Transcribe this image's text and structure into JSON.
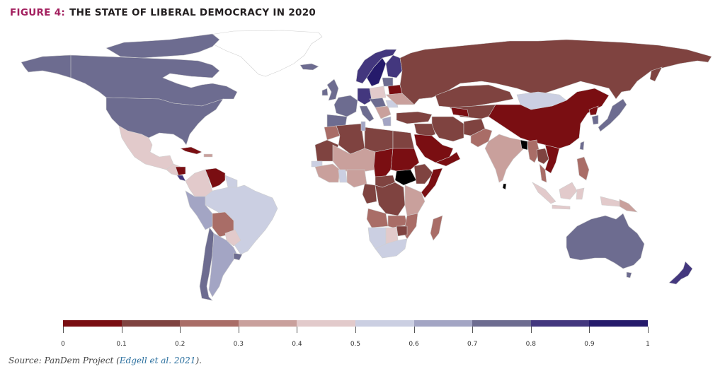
{
  "header": {
    "figure_label": "FIGURE 4:",
    "title": "THE STATE OF LIBERAL DEMOCRACY IN 2020"
  },
  "legend": {
    "ticks": [
      "0",
      "0.1",
      "0.2",
      "0.3",
      "0.4",
      "0.5",
      "0.6",
      "0.7",
      "0.8",
      "0.9",
      "1"
    ],
    "colors": [
      "#7a0e12",
      "#7f4340",
      "#a96d67",
      "#c9a09c",
      "#e2cacb",
      "#cbcfe2",
      "#a3a5c4",
      "#6d6c90",
      "#43377e",
      "#251a6b"
    ]
  },
  "source": {
    "prefix": "Source: PanDem Project (",
    "link": "Edgell et al. 2021",
    "suffix": ")."
  },
  "chart_data": {
    "type": "choropleth",
    "title": "THE STATE OF LIBERAL DEMOCRACY IN 2020",
    "value_range": [
      0,
      1
    ],
    "bins": [
      {
        "range": [
          0.0,
          0.1
        ],
        "color": "#7a0e12"
      },
      {
        "range": [
          0.1,
          0.2
        ],
        "color": "#7f4340"
      },
      {
        "range": [
          0.2,
          0.3
        ],
        "color": "#a96d67"
      },
      {
        "range": [
          0.3,
          0.4
        ],
        "color": "#c9a09c"
      },
      {
        "range": [
          0.4,
          0.5
        ],
        "color": "#e2cacb"
      },
      {
        "range": [
          0.5,
          0.6
        ],
        "color": "#cbcfe2"
      },
      {
        "range": [
          0.6,
          0.7
        ],
        "color": "#a3a5c4"
      },
      {
        "range": [
          0.7,
          0.8
        ],
        "color": "#6d6c90"
      },
      {
        "range": [
          0.8,
          0.9
        ],
        "color": "#43377e"
      },
      {
        "range": [
          0.9,
          1.0
        ],
        "color": "#251a6b"
      }
    ],
    "regions": [
      {
        "name": "Canada",
        "bin": 7
      },
      {
        "name": "United States",
        "bin": 7
      },
      {
        "name": "Greenland",
        "bin": null
      },
      {
        "name": "Iceland",
        "bin": 7
      },
      {
        "name": "Mexico",
        "bin": 4
      },
      {
        "name": "Cuba",
        "bin": 0
      },
      {
        "name": "Nicaragua",
        "bin": 0
      },
      {
        "name": "Costa Rica",
        "bin": 8
      },
      {
        "name": "Venezuela",
        "bin": 0
      },
      {
        "name": "Colombia",
        "bin": 4
      },
      {
        "name": "Brazil",
        "bin": 5
      },
      {
        "name": "Peru",
        "bin": 6
      },
      {
        "name": "Bolivia",
        "bin": 2
      },
      {
        "name": "Paraguay",
        "bin": 4
      },
      {
        "name": "Argentina",
        "bin": 6
      },
      {
        "name": "Chile",
        "bin": 7
      },
      {
        "name": "Uruguay",
        "bin": 7
      },
      {
        "name": "Norway",
        "bin": 8
      },
      {
        "name": "Sweden",
        "bin": 9
      },
      {
        "name": "Finland",
        "bin": 8
      },
      {
        "name": "Germany",
        "bin": 8
      },
      {
        "name": "France",
        "bin": 7
      },
      {
        "name": "United Kingdom",
        "bin": 7
      },
      {
        "name": "Spain",
        "bin": 7
      },
      {
        "name": "Poland",
        "bin": 4
      },
      {
        "name": "Belarus",
        "bin": 0
      },
      {
        "name": "Ukraine",
        "bin": 3
      },
      {
        "name": "Russia",
        "bin": 1
      },
      {
        "name": "Kazakhstan",
        "bin": 1
      },
      {
        "name": "Mongolia",
        "bin": 5
      },
      {
        "name": "China",
        "bin": 0
      },
      {
        "name": "Japan",
        "bin": 7
      },
      {
        "name": "South Korea",
        "bin": 7
      },
      {
        "name": "India",
        "bin": 3
      },
      {
        "name": "Iran",
        "bin": 1
      },
      {
        "name": "Saudi Arabia",
        "bin": 0
      },
      {
        "name": "Turkey",
        "bin": 1
      },
      {
        "name": "Egypt",
        "bin": 1
      },
      {
        "name": "Libya",
        "bin": 1
      },
      {
        "name": "Algeria",
        "bin": 1
      },
      {
        "name": "Sudan",
        "bin": 0
      },
      {
        "name": "Chad",
        "bin": 0
      },
      {
        "name": "Ethiopia",
        "bin": 1
      },
      {
        "name": "Somalia",
        "bin": 0
      },
      {
        "name": "DR Congo",
        "bin": 1
      },
      {
        "name": "Angola",
        "bin": 2
      },
      {
        "name": "Namibia",
        "bin": 5
      },
      {
        "name": "South Africa",
        "bin": 5
      },
      {
        "name": "Botswana",
        "bin": 4
      },
      {
        "name": "Madagascar",
        "bin": 2
      },
      {
        "name": "Indonesia",
        "bin": 4
      },
      {
        "name": "Papua New Guinea",
        "bin": 3
      },
      {
        "name": "Australia",
        "bin": 7
      },
      {
        "name": "New Zealand",
        "bin": 8
      }
    ]
  }
}
